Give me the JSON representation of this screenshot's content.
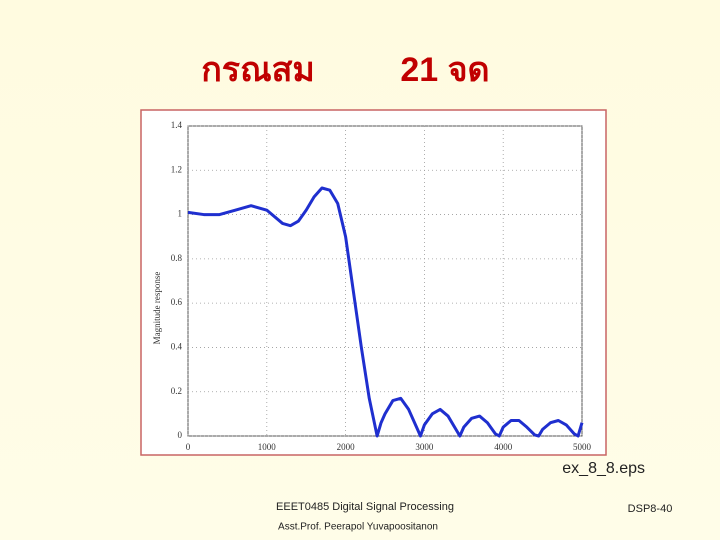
{
  "slide": {
    "title_left": "กรณสม",
    "title_right": "21 จด",
    "caption": "ex_8_8.eps",
    "course": "EEET0485 Digital Signal Processing",
    "author": "Asst.Prof. Peerapol Yuvapoositanon",
    "page": "DSP8-40"
  },
  "chart_data": {
    "type": "line",
    "y_label": "Magnitude response",
    "x": [
      0,
      200,
      400,
      600,
      800,
      1000,
      1200,
      1300,
      1400,
      1500,
      1600,
      1700,
      1800,
      1900,
      2000,
      2100,
      2200,
      2300,
      2400,
      2450,
      2500,
      2600,
      2700,
      2800,
      2900,
      2950,
      3000,
      3100,
      3200,
      3300,
      3400,
      3450,
      3500,
      3600,
      3700,
      3800,
      3900,
      3950,
      4000,
      4100,
      4200,
      4300,
      4400,
      4450,
      4500,
      4600,
      4700,
      4800,
      4900,
      4950,
      5000
    ],
    "series": [
      {
        "name": "Magnitude response",
        "color": "#1f2fcf",
        "values": [
          1.01,
          1.0,
          1.0,
          1.02,
          1.04,
          1.02,
          0.96,
          0.95,
          0.97,
          1.02,
          1.08,
          1.12,
          1.11,
          1.05,
          0.9,
          0.65,
          0.4,
          0.17,
          0.0,
          0.06,
          0.1,
          0.16,
          0.17,
          0.12,
          0.04,
          0.0,
          0.05,
          0.1,
          0.12,
          0.09,
          0.03,
          0.0,
          0.04,
          0.08,
          0.09,
          0.06,
          0.01,
          0.0,
          0.04,
          0.07,
          0.07,
          0.04,
          0.005,
          0.0,
          0.03,
          0.06,
          0.07,
          0.05,
          0.01,
          0.0,
          0.06
        ]
      }
    ],
    "xlim": [
      0,
      5000
    ],
    "xticks": [
      0,
      1000,
      2000,
      3000,
      4000,
      5000
    ],
    "ylim": [
      0,
      1.4
    ],
    "yticks": [
      0,
      0.2,
      0.4,
      0.6,
      0.8,
      1,
      1.2,
      1.4
    ],
    "grid": true
  }
}
